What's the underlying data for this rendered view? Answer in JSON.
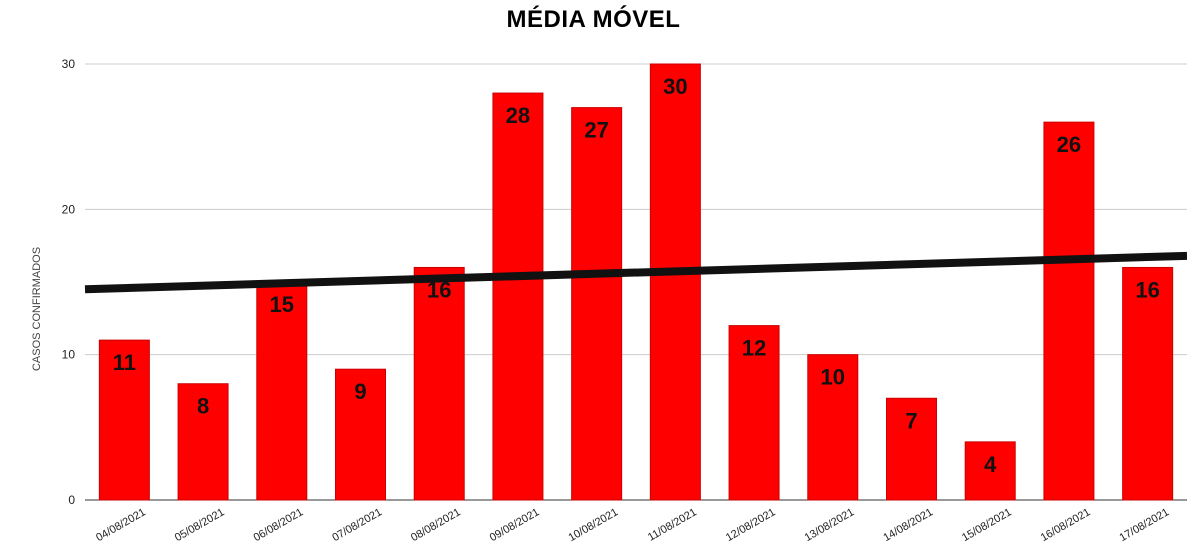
{
  "chart_data": {
    "type": "bar",
    "title": "MÉDIA MÓVEL",
    "xlabel": "",
    "ylabel": "CASOS CONFIRMADOS",
    "ylim": [
      0,
      30
    ],
    "yticks": [
      "0",
      "10",
      "20",
      "30"
    ],
    "grid": true,
    "legend": "none",
    "categories": [
      "04/08/2021",
      "05/08/2021",
      "06/08/2021",
      "07/08/2021",
      "08/08/2021",
      "09/08/2021",
      "10/08/2021",
      "11/08/2021",
      "12/08/2021",
      "13/08/2021",
      "14/08/2021",
      "15/08/2021",
      "16/08/2021",
      "17/08/2021"
    ],
    "values": [
      11,
      8,
      15,
      9,
      16,
      28,
      27,
      30,
      12,
      10,
      7,
      4,
      26,
      16
    ],
    "data_labels": [
      "11",
      "8",
      "15",
      "9",
      "16",
      "28",
      "27",
      "30",
      "12",
      "10",
      "7",
      "4",
      "26",
      "16"
    ],
    "trendline": {
      "type": "linear",
      "start_value": 14.5,
      "end_value": 16.8
    },
    "colors": {
      "bar": "#ff0000",
      "bar_border": "#cc0000",
      "trendline": "#111111",
      "grid": "#cccccc"
    }
  }
}
